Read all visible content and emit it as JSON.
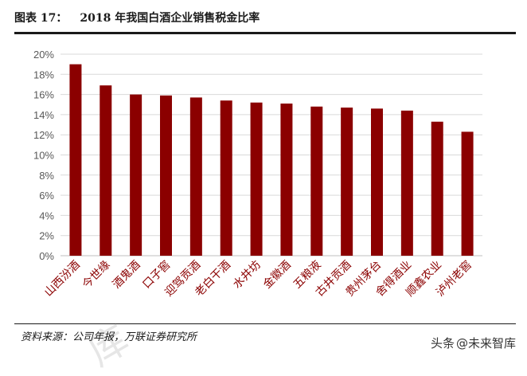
{
  "header": {
    "label": "图表 17：",
    "title": "2018 年我国白酒企业销售税金比率"
  },
  "chart_data": {
    "type": "bar",
    "title": "2018 年我国白酒企业销售税金比率",
    "categories": [
      "山西汾酒",
      "今世缘",
      "酒鬼酒",
      "口子窖",
      "迎驾贡酒",
      "老白干酒",
      "水井坊",
      "金徽酒",
      "五粮液",
      "古井贡酒",
      "贵州茅台",
      "舍得酒业",
      "顺鑫农业",
      "泸州老窖"
    ],
    "values": [
      19.0,
      16.9,
      16.0,
      15.9,
      15.7,
      15.4,
      15.2,
      15.1,
      14.8,
      14.7,
      14.6,
      14.4,
      13.3,
      12.3
    ],
    "ylim": [
      0,
      20
    ],
    "yticks": [
      "0%",
      "2%",
      "4%",
      "6%",
      "8%",
      "10%",
      "12%",
      "14%",
      "16%",
      "18%",
      "20%"
    ],
    "xlabel": "",
    "ylabel": "",
    "grid": true,
    "bar_color": "#8b0000"
  },
  "source": "资料来源：公司年报，万联证券研究所",
  "watermark": {
    "left": "头条",
    "right": "@未来智库"
  }
}
